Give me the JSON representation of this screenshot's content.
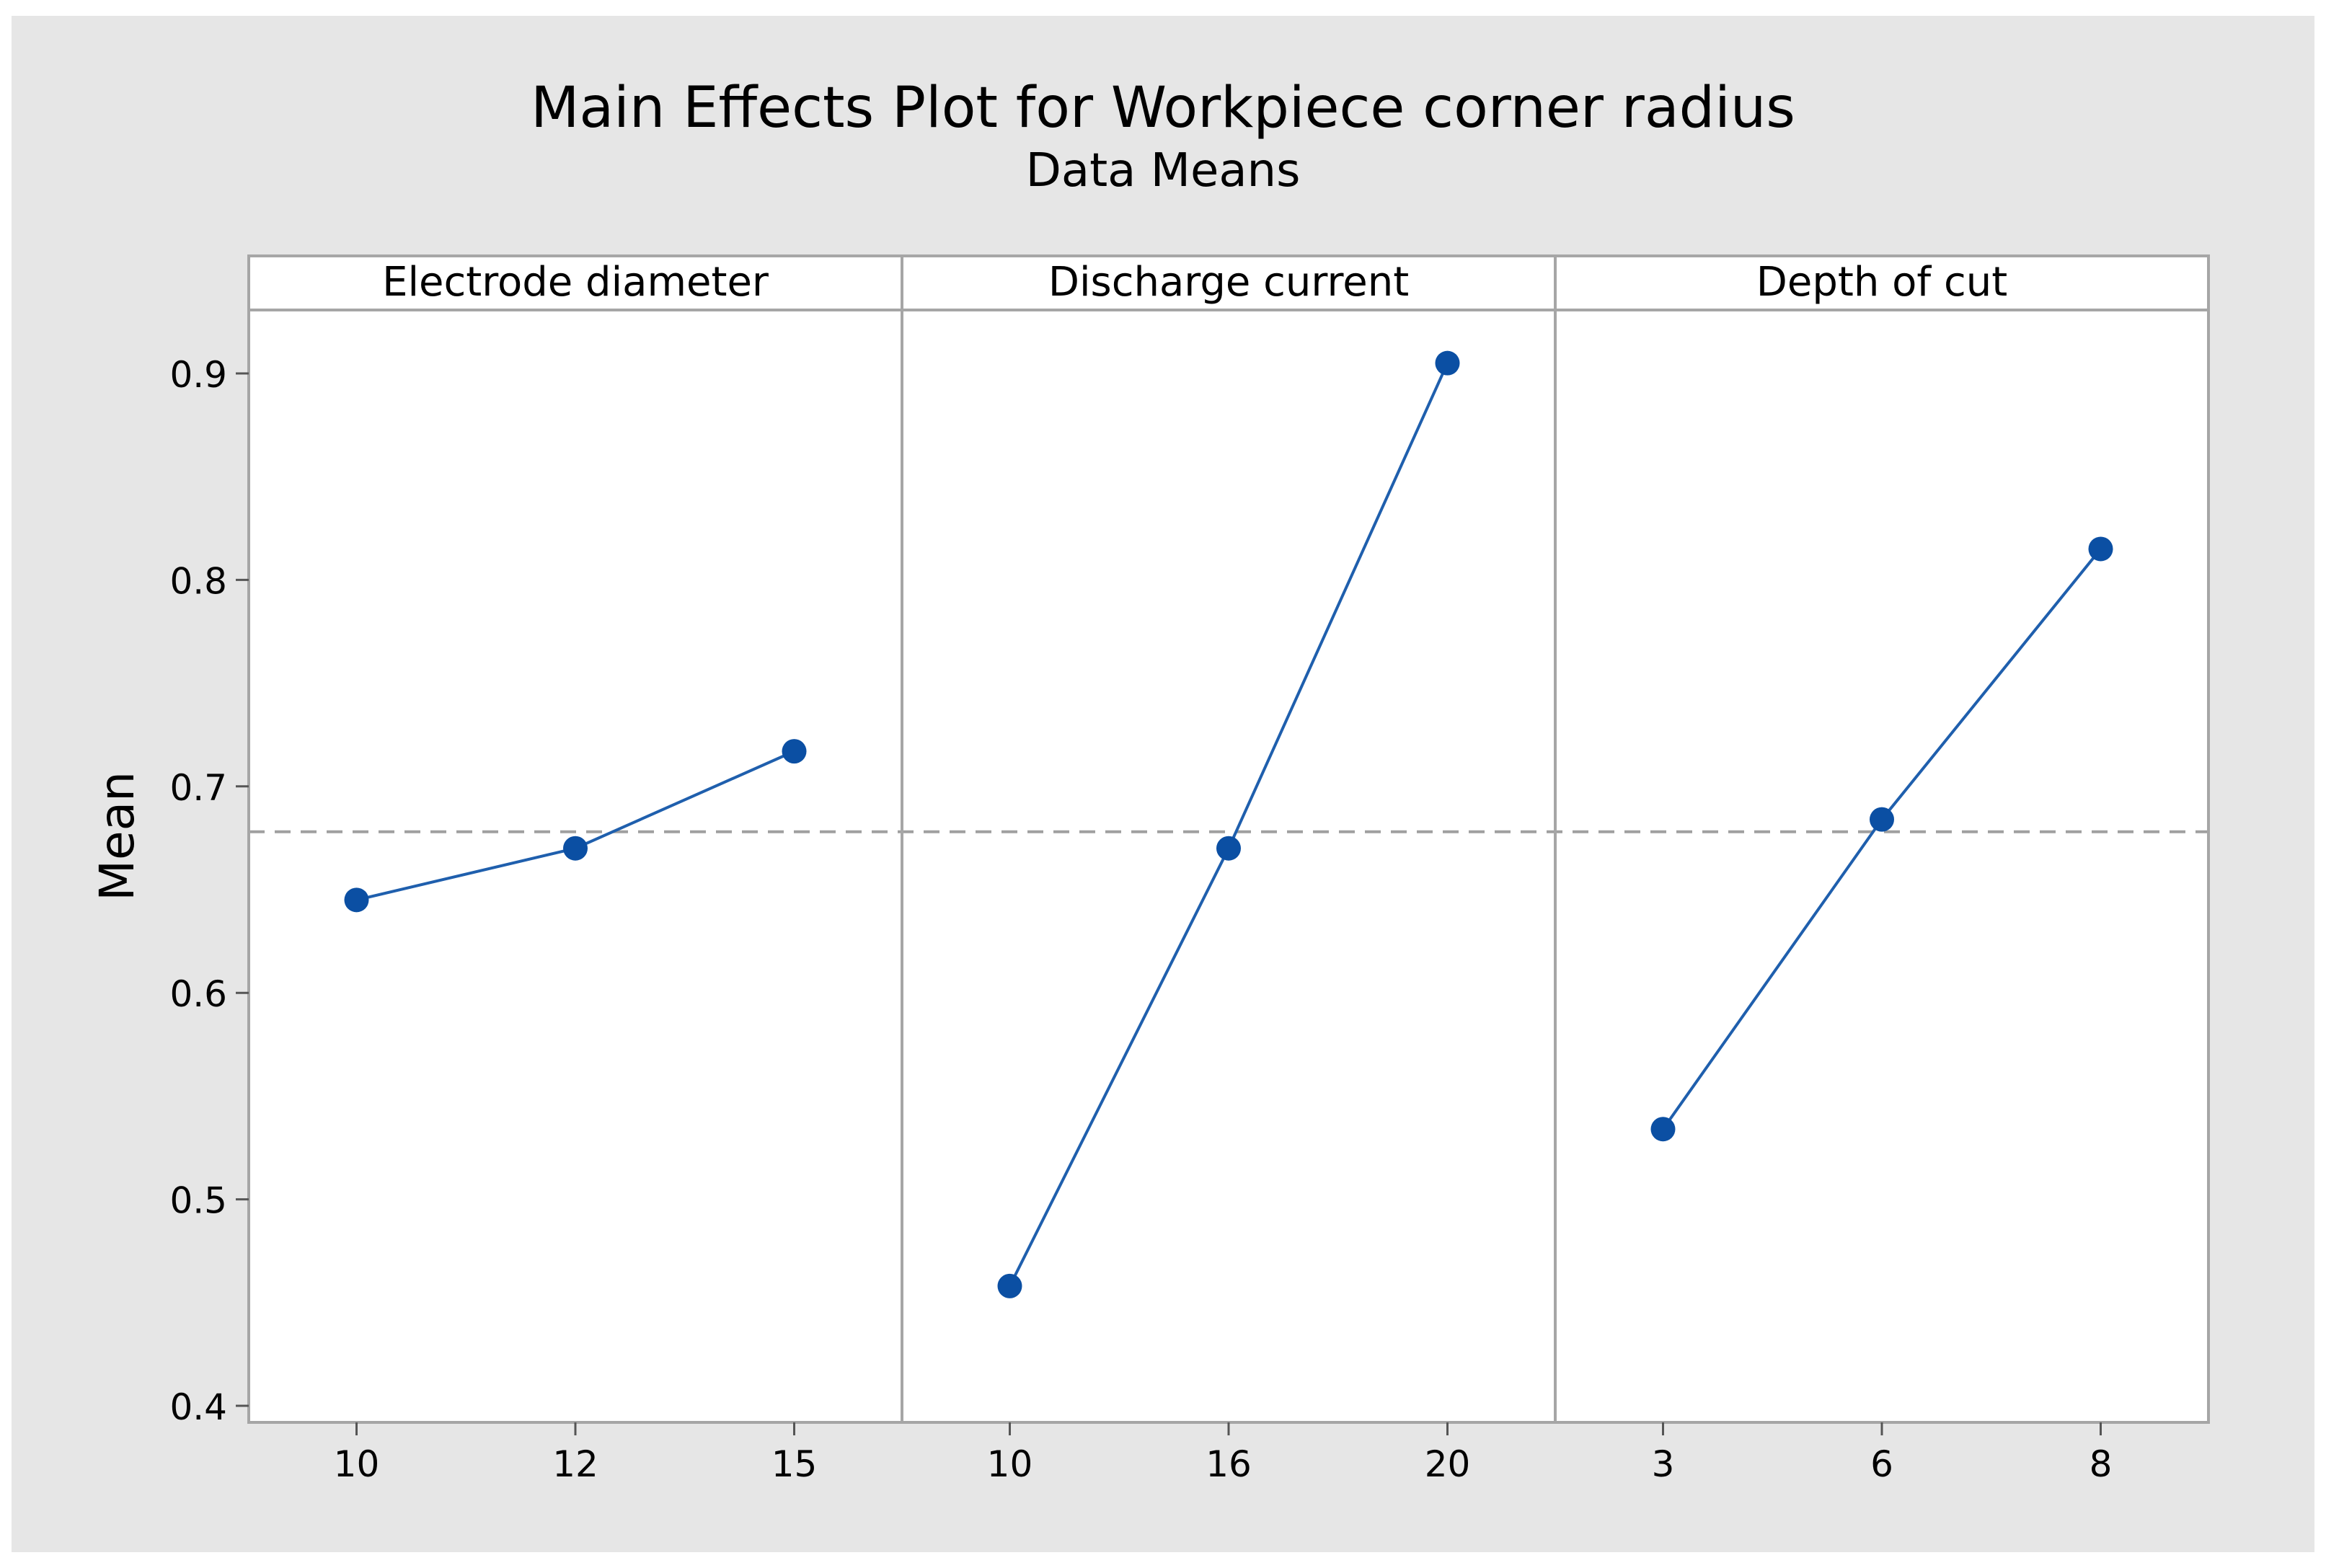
{
  "chart_data": {
    "type": "line",
    "title": "Main Effects Plot for Workpiece corner radius",
    "subtitle": "Data Means",
    "ylabel": "Mean",
    "ylim": [
      0.4,
      0.9
    ],
    "yticks": [
      "0.4",
      "0.5",
      "0.6",
      "0.7",
      "0.8",
      "0.9"
    ],
    "overall_mean": 0.678,
    "grid": false,
    "colors": {
      "background": "#e6e6e6",
      "plot_background": "#ffffff",
      "series": "#1f5fad",
      "marker": "#0b4fa3",
      "reference_line": "#a0a0a0",
      "frame": "#a6a6a6"
    },
    "panels": [
      {
        "name": "Electrode diameter",
        "categories": [
          "10",
          "12",
          "15"
        ],
        "values": [
          0.645,
          0.67,
          0.717
        ]
      },
      {
        "name": "Discharge current",
        "categories": [
          "10",
          "16",
          "20"
        ],
        "values": [
          0.458,
          0.67,
          0.905
        ]
      },
      {
        "name": "Depth of cut",
        "categories": [
          "3",
          "6",
          "8"
        ],
        "values": [
          0.534,
          0.684,
          0.815
        ]
      }
    ]
  }
}
